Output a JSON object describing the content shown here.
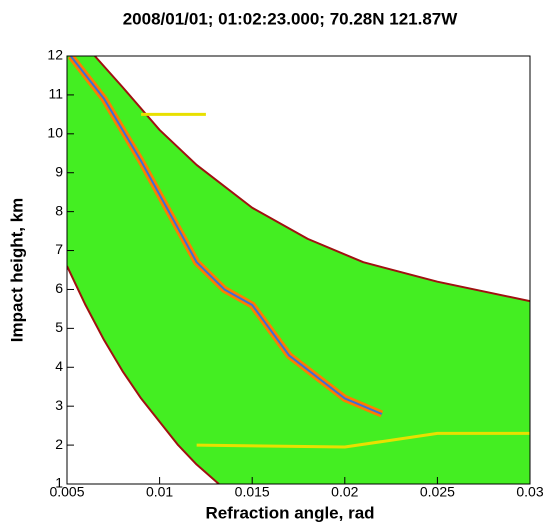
{
  "chart_data": {
    "type": "contour",
    "title": "2008/01/01; 01:02:23.000; 70.28N 121.87W",
    "x_label": "Refraction angle, rad",
    "y_label": "Impact height, km",
    "xlim": [
      0.005,
      0.03
    ],
    "ylim": [
      1,
      12
    ],
    "xticks": [
      0.005,
      0.01,
      0.015,
      0.02,
      0.025,
      0.03
    ],
    "yticks": [
      1,
      2,
      3,
      4,
      5,
      6,
      7,
      8,
      9,
      10,
      11,
      12
    ],
    "fill_color": "#44ee22",
    "series": [
      {
        "color": "#a01010",
        "x": [
          0.005,
          0.006,
          0.007,
          0.008,
          0.009,
          0.01,
          0.011,
          0.012,
          0.0132
        ],
        "values": [
          6.6,
          5.6,
          4.7,
          3.9,
          3.2,
          2.6,
          2.0,
          1.5,
          1
        ]
      },
      {
        "color": "#a01010",
        "x": [
          0.0065,
          0.008,
          0.01,
          0.012,
          0.015,
          0.018,
          0.021,
          0.025,
          0.03
        ],
        "values": [
          12,
          11.2,
          10.1,
          9.2,
          8.1,
          7.3,
          6.7,
          6.2,
          5.7
        ]
      },
      {
        "color": "#ff7a00",
        "x": [
          0.0052,
          0.007,
          0.009,
          0.0105,
          0.012,
          0.0135,
          0.015,
          0.017,
          0.02,
          0.022
        ],
        "values": [
          12,
          10.9,
          9.3,
          8,
          6.7,
          6,
          5.6,
          4.3,
          3.2,
          2.8
        ]
      },
      {
        "color": "#e8e000",
        "x": [
          0.012,
          0.02,
          0.025,
          0.03
        ],
        "values": [
          2.0,
          1.95,
          2.3,
          2.3
        ]
      },
      {
        "color": "#e8e000",
        "x": [
          0.009,
          0.0125
        ],
        "values": [
          10.5,
          10.5
        ]
      }
    ]
  }
}
